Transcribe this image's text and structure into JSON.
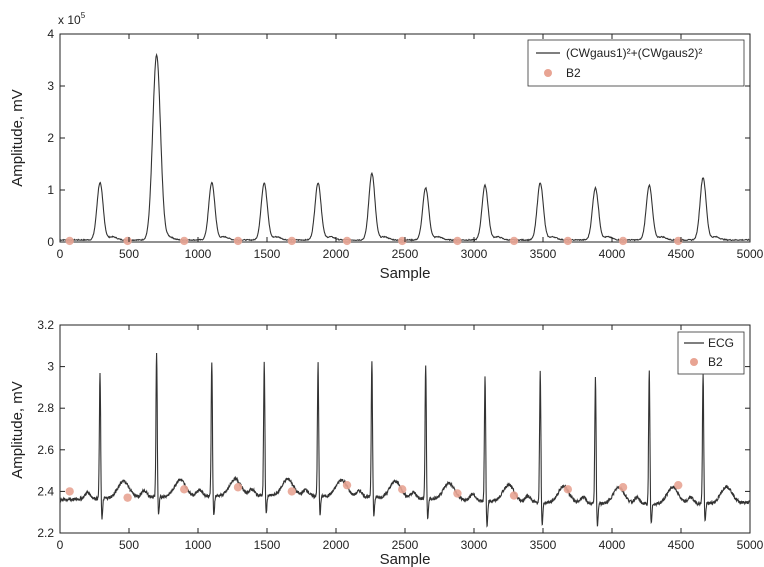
{
  "chart_data": [
    {
      "type": "line",
      "xlabel": "Sample",
      "ylabel": "Amplitude, mV",
      "y_multiplier": "x 10",
      "y_multiplier_exp": "5",
      "xlim": [
        0,
        5000
      ],
      "ylim": [
        0,
        4
      ],
      "xticks": [
        0,
        500,
        1000,
        1500,
        2000,
        2500,
        3000,
        3500,
        4000,
        4500,
        5000
      ],
      "yticks": [
        0,
        1,
        2,
        3,
        4
      ],
      "grid": false,
      "legend_position": "top-right",
      "series": [
        {
          "name": "(CWgaus1)²+(CWgaus2)²",
          "style": "line",
          "color": "#333333",
          "peaks": [
            {
              "x": 290,
              "y": 1.1
            },
            {
              "x": 700,
              "y": 3.55
            },
            {
              "x": 1100,
              "y": 1.1
            },
            {
              "x": 1480,
              "y": 1.1
            },
            {
              "x": 1870,
              "y": 1.1
            },
            {
              "x": 2260,
              "y": 1.28
            },
            {
              "x": 2650,
              "y": 1.0
            },
            {
              "x": 3080,
              "y": 1.05
            },
            {
              "x": 3480,
              "y": 1.1
            },
            {
              "x": 3880,
              "y": 1.0
            },
            {
              "x": 4270,
              "y": 1.05
            },
            {
              "x": 4660,
              "y": 1.2
            }
          ]
        },
        {
          "name": "B2",
          "style": "marker",
          "color": "#e8a493",
          "x": [
            70,
            490,
            900,
            1290,
            1680,
            2080,
            2480,
            2880,
            3290,
            3680,
            4080,
            4480
          ],
          "y": [
            0.02,
            0.02,
            0.02,
            0.02,
            0.02,
            0.02,
            0.02,
            0.02,
            0.02,
            0.02,
            0.02,
            0.02
          ]
        }
      ]
    },
    {
      "type": "line",
      "xlabel": "Sample",
      "ylabel": "Amplitude, mV",
      "xlim": [
        0,
        5000
      ],
      "ylim": [
        2.2,
        3.2
      ],
      "xticks": [
        0,
        500,
        1000,
        1500,
        2000,
        2500,
        3000,
        3500,
        4000,
        4500,
        5000
      ],
      "yticks": [
        2.2,
        2.4,
        2.6,
        2.8,
        3.0,
        3.2
      ],
      "ytick_labels": [
        "2.2",
        "2.4",
        "2.6",
        "2.8",
        "3",
        "3.2"
      ],
      "grid": false,
      "legend_position": "top-right",
      "series": [
        {
          "name": "ECG",
          "style": "line",
          "color": "#333333",
          "baseline": 2.36,
          "beats": [
            {
              "x": 290,
              "r": 2.96,
              "s": 2.26
            },
            {
              "x": 700,
              "r": 3.05,
              "s": 2.27
            },
            {
              "x": 1100,
              "r": 3.0,
              "s": 2.26
            },
            {
              "x": 1480,
              "r": 3.0,
              "s": 2.27
            },
            {
              "x": 1870,
              "r": 3.0,
              "s": 2.27
            },
            {
              "x": 2260,
              "r": 3.02,
              "s": 2.27
            },
            {
              "x": 2650,
              "r": 3.0,
              "s": 2.26
            },
            {
              "x": 3080,
              "r": 2.96,
              "s": 2.23
            },
            {
              "x": 3480,
              "r": 2.99,
              "s": 2.25
            },
            {
              "x": 3880,
              "r": 2.97,
              "s": 2.25
            },
            {
              "x": 4270,
              "r": 3.0,
              "s": 2.26
            },
            {
              "x": 4660,
              "r": 2.98,
              "s": 2.27
            }
          ]
        },
        {
          "name": "B2",
          "style": "marker",
          "color": "#e8a493",
          "x": [
            70,
            490,
            900,
            1290,
            1680,
            2080,
            2480,
            2880,
            3290,
            3680,
            4080,
            4480
          ],
          "y": [
            2.4,
            2.37,
            2.41,
            2.42,
            2.4,
            2.43,
            2.41,
            2.39,
            2.38,
            2.41,
            2.42,
            2.43
          ]
        }
      ]
    }
  ]
}
